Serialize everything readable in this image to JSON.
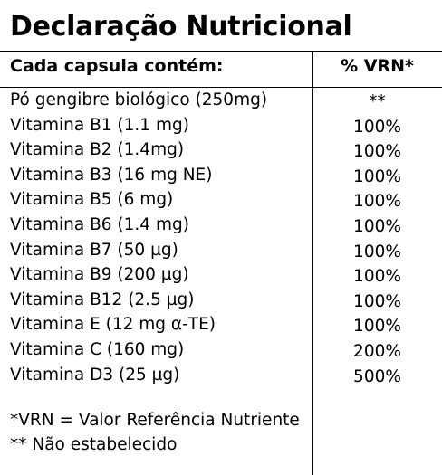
{
  "title": "Declaração Nutricional",
  "table": {
    "header_left": "Cada capsula contém:",
    "header_right": "% VRN*",
    "rows": [
      {
        "name": "Pó gengibre biológico (250mg)",
        "value": "**"
      },
      {
        "name": "Vitamina  B1 (1.1 mg)",
        "value": "100%"
      },
      {
        "name": "Vitamina B2 (1.4mg)",
        "value": "100%"
      },
      {
        "name": "Vitamina  B3 (16 mg NE)",
        "value": "100%"
      },
      {
        "name": "Vitamina B5 (6 mg)",
        "value": "100%"
      },
      {
        "name": "Vitamina  B6 (1.4 mg)",
        "value": "100%"
      },
      {
        "name": "Vitamina  B7 (50 µg)",
        "value": "100%"
      },
      {
        "name": "Vitamina  B9 (200 µg)",
        "value": "100%"
      },
      {
        "name": "Vitamina B12 (2.5 µg)",
        "value": "100%"
      },
      {
        "name": "Vitamina E (12 mg α-TE)",
        "value": "100%"
      },
      {
        "name": "Vitamina C (160 mg)",
        "value": "200%"
      },
      {
        "name": "Vitamina D3 (25 µg)",
        "value": "500%"
      }
    ]
  },
  "footnotes": [
    "*VRN = Valor Referência Nutriente",
    "** Não estabelecido"
  ]
}
